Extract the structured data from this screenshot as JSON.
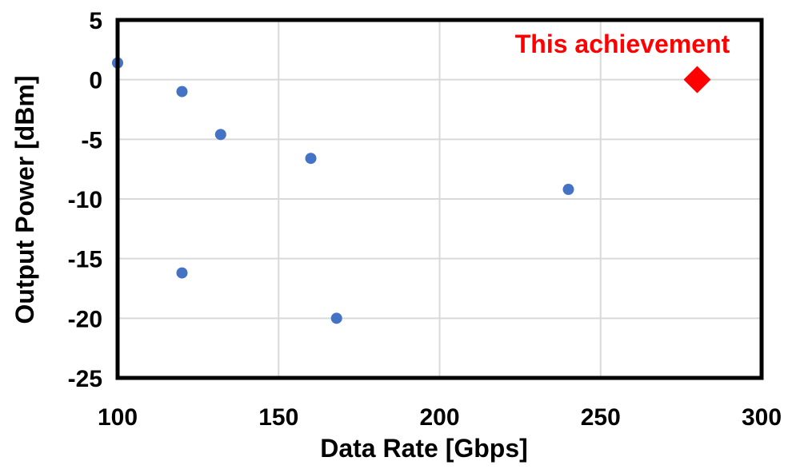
{
  "chart_data": {
    "type": "scatter",
    "title": "",
    "xlabel": "Data Rate [Gbps]",
    "ylabel": "Output Power [dBm]",
    "xlim": [
      100,
      300
    ],
    "ylim": [
      -25,
      5
    ],
    "x_ticks": [
      "100",
      "150",
      "200",
      "250",
      "300"
    ],
    "y_ticks": [
      "5",
      "0",
      "-5",
      "-10",
      "-15",
      "-20",
      "-25"
    ],
    "grid": true,
    "legend": "none",
    "series": [
      {
        "marker": "circle",
        "color": "#4472c4",
        "points": [
          {
            "x": 100,
            "y": 1.4
          },
          {
            "x": 120,
            "y": -1.0
          },
          {
            "x": 132,
            "y": -4.6
          },
          {
            "x": 160,
            "y": -6.6
          },
          {
            "x": 240,
            "y": -9.2
          },
          {
            "x": 120,
            "y": -16.2
          },
          {
            "x": 168,
            "y": -20.0
          }
        ]
      },
      {
        "marker": "diamond",
        "color": "#ff0000",
        "points": [
          {
            "x": 280,
            "y": 0
          }
        ]
      }
    ],
    "annotations": [
      {
        "text": "This achievement",
        "color": "#ff0000"
      }
    ]
  }
}
